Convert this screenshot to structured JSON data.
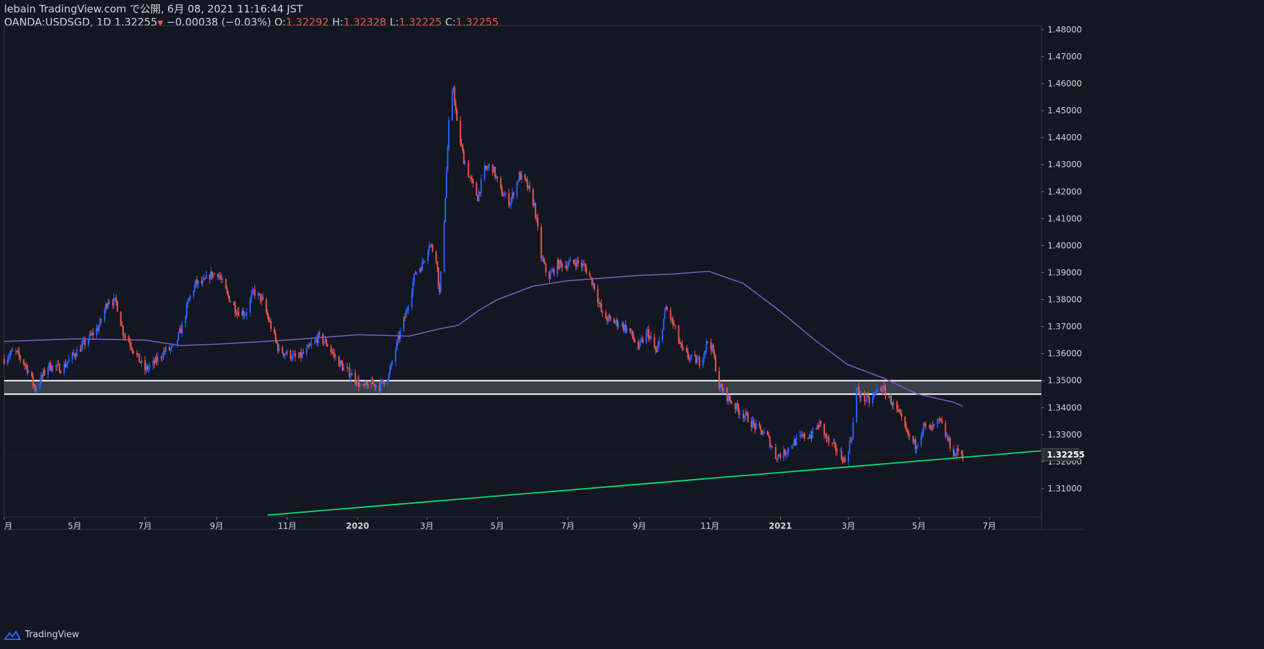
{
  "header": {
    "line1": "lebain TradingView.com で公開, 6月 08, 2021 11:16:44 JST",
    "symbol": "OANDA:USDSGD, 1D",
    "last": "1.32255",
    "change": "−0.00038 (−0.03%)",
    "o_label": "O:",
    "o_value": "1.32292",
    "h_label": "H:",
    "h_value": "1.32328",
    "l_label": "L:",
    "l_value": "1.32225",
    "c_label": "C:",
    "c_value": "1.32255"
  },
  "footer": {
    "brand": "TradingView",
    "logo_icon": "tradingview-logo-icon"
  },
  "colors": {
    "background": "#131722",
    "up": "#2962ff",
    "down": "#ef5350",
    "ma": "#7e57c2",
    "trendline": "#00e676",
    "zone": "#ffffff"
  },
  "chart_data": {
    "type": "candlestick",
    "symbol": "OANDA:USDSGD",
    "interval": "1D",
    "ylim": [
      1.2995,
      1.4815
    ],
    "xlim": [
      "2019-03-01",
      "2021-08-15"
    ],
    "y_ticks": [
      "1.48000",
      "1.47000",
      "1.46000",
      "1.45000",
      "1.44000",
      "1.43000",
      "1.42000",
      "1.41000",
      "1.40000",
      "1.39000",
      "1.38000",
      "1.37000",
      "1.36000",
      "1.35000",
      "1.34000",
      "1.33000",
      "1.32000",
      "1.31000"
    ],
    "y_tick_values": [
      1.48,
      1.47,
      1.46,
      1.45,
      1.44,
      1.43,
      1.42,
      1.41,
      1.4,
      1.39,
      1.38,
      1.37,
      1.36,
      1.35,
      1.34,
      1.33,
      1.32,
      1.31
    ],
    "x_ticks": [
      {
        "label": "月",
        "date": "2019-03-01"
      },
      {
        "label": "5月",
        "date": "2019-05-01"
      },
      {
        "label": "7月",
        "date": "2019-07-01"
      },
      {
        "label": "9月",
        "date": "2019-09-01"
      },
      {
        "label": "11月",
        "date": "2019-11-01"
      },
      {
        "label": "2020",
        "date": "2020-01-01",
        "bold": true
      },
      {
        "label": "3月",
        "date": "2020-03-01"
      },
      {
        "label": "5月",
        "date": "2020-05-01"
      },
      {
        "label": "7月",
        "date": "2020-07-01"
      },
      {
        "label": "9月",
        "date": "2020-09-01"
      },
      {
        "label": "11月",
        "date": "2020-11-01"
      },
      {
        "label": "2021",
        "date": "2021-01-01",
        "bold": true
      },
      {
        "label": "3月",
        "date": "2021-03-01"
      },
      {
        "label": "5月",
        "date": "2021-05-01"
      },
      {
        "label": "7月",
        "date": "2021-07-01"
      }
    ],
    "last_price_label": "1.32255",
    "last_price": 1.32255,
    "price_path": [
      [
        "2019-03-01",
        1.358
      ],
      [
        "2019-03-10",
        1.361
      ],
      [
        "2019-03-20",
        1.3555
      ],
      [
        "2019-03-28",
        1.347
      ],
      [
        "2019-04-08",
        1.3555
      ],
      [
        "2019-04-20",
        1.3545
      ],
      [
        "2019-05-01",
        1.36
      ],
      [
        "2019-05-10",
        1.364
      ],
      [
        "2019-05-22",
        1.37
      ],
      [
        "2019-05-30",
        1.38
      ],
      [
        "2019-06-06",
        1.379
      ],
      [
        "2019-06-12",
        1.368
      ],
      [
        "2019-06-18",
        1.364
      ],
      [
        "2019-06-24",
        1.359
      ],
      [
        "2019-07-01",
        1.354
      ],
      [
        "2019-07-08",
        1.356
      ],
      [
        "2019-07-18",
        1.361
      ],
      [
        "2019-07-26",
        1.362
      ],
      [
        "2019-08-02",
        1.37
      ],
      [
        "2019-08-08",
        1.38
      ],
      [
        "2019-08-14",
        1.386
      ],
      [
        "2019-08-20",
        1.386
      ],
      [
        "2019-08-26",
        1.389
      ],
      [
        "2019-09-02",
        1.39
      ],
      [
        "2019-09-10",
        1.382
      ],
      [
        "2019-09-18",
        1.376
      ],
      [
        "2019-09-26",
        1.375
      ],
      [
        "2019-10-03",
        1.383
      ],
      [
        "2019-10-10",
        1.38
      ],
      [
        "2019-10-18",
        1.37
      ],
      [
        "2019-10-25",
        1.361
      ],
      [
        "2019-11-01",
        1.36
      ],
      [
        "2019-11-10",
        1.358
      ],
      [
        "2019-11-20",
        1.362
      ],
      [
        "2019-11-28",
        1.366
      ],
      [
        "2019-12-05",
        1.364
      ],
      [
        "2019-12-12",
        1.359
      ],
      [
        "2019-12-20",
        1.3545
      ],
      [
        "2019-12-28",
        1.352
      ],
      [
        "2020-01-05",
        1.347
      ],
      [
        "2020-01-12",
        1.349
      ],
      [
        "2020-01-20",
        1.348
      ],
      [
        "2020-01-28",
        1.352
      ],
      [
        "2020-02-05",
        1.365
      ],
      [
        "2020-02-12",
        1.375
      ],
      [
        "2020-02-20",
        1.39
      ],
      [
        "2020-02-26",
        1.393
      ],
      [
        "2020-03-03",
        1.401
      ],
      [
        "2020-03-09",
        1.396
      ],
      [
        "2020-03-12",
        1.382
      ],
      [
        "2020-03-16",
        1.41
      ],
      [
        "2020-03-20",
        1.445
      ],
      [
        "2020-03-24",
        1.459
      ],
      [
        "2020-03-27",
        1.445
      ],
      [
        "2020-04-02",
        1.432
      ],
      [
        "2020-04-08",
        1.424
      ],
      [
        "2020-04-14",
        1.418
      ],
      [
        "2020-04-20",
        1.428
      ],
      [
        "2020-04-26",
        1.43
      ],
      [
        "2020-05-04",
        1.42
      ],
      [
        "2020-05-12",
        1.416
      ],
      [
        "2020-05-20",
        1.426
      ],
      [
        "2020-05-26",
        1.423
      ],
      [
        "2020-06-02",
        1.415
      ],
      [
        "2020-06-08",
        1.396
      ],
      [
        "2020-06-14",
        1.388
      ],
      [
        "2020-06-22",
        1.393
      ],
      [
        "2020-06-30",
        1.393
      ],
      [
        "2020-07-08",
        1.394
      ],
      [
        "2020-07-16",
        1.392
      ],
      [
        "2020-07-24",
        1.385
      ],
      [
        "2020-07-31",
        1.374
      ],
      [
        "2020-08-08",
        1.372
      ],
      [
        "2020-08-16",
        1.371
      ],
      [
        "2020-08-24",
        1.368
      ],
      [
        "2020-08-31",
        1.362
      ],
      [
        "2020-09-08",
        1.368
      ],
      [
        "2020-09-16",
        1.36
      ],
      [
        "2020-09-24",
        1.377
      ],
      [
        "2020-10-01",
        1.37
      ],
      [
        "2020-10-08",
        1.361
      ],
      [
        "2020-10-16",
        1.358
      ],
      [
        "2020-10-24",
        1.357
      ],
      [
        "2020-10-31",
        1.366
      ],
      [
        "2020-11-04",
        1.36
      ],
      [
        "2020-11-09",
        1.348
      ],
      [
        "2020-11-18",
        1.343
      ],
      [
        "2020-11-26",
        1.339
      ],
      [
        "2020-12-04",
        1.336
      ],
      [
        "2020-12-12",
        1.332
      ],
      [
        "2020-12-20",
        1.33
      ],
      [
        "2020-12-28",
        1.322
      ],
      [
        "2021-01-04",
        1.323
      ],
      [
        "2021-01-12",
        1.327
      ],
      [
        "2021-01-20",
        1.329
      ],
      [
        "2021-01-28",
        1.33
      ],
      [
        "2021-02-04",
        1.334
      ],
      [
        "2021-02-12",
        1.327
      ],
      [
        "2021-02-20",
        1.324
      ],
      [
        "2021-02-26",
        1.32
      ],
      [
        "2021-03-04",
        1.33
      ],
      [
        "2021-03-08",
        1.347
      ],
      [
        "2021-03-12",
        1.344
      ],
      [
        "2021-03-20",
        1.342
      ],
      [
        "2021-03-28",
        1.348
      ],
      [
        "2021-04-05",
        1.344
      ],
      [
        "2021-04-13",
        1.338
      ],
      [
        "2021-04-21",
        1.33
      ],
      [
        "2021-04-28",
        1.326
      ],
      [
        "2021-05-05",
        1.333
      ],
      [
        "2021-05-12",
        1.332
      ],
      [
        "2021-05-19",
        1.335
      ],
      [
        "2021-05-26",
        1.328
      ],
      [
        "2021-06-01",
        1.3225
      ],
      [
        "2021-06-04",
        1.324
      ],
      [
        "2021-06-08",
        1.32255
      ]
    ],
    "series": [
      {
        "name": "",
        "kind": "moving_average",
        "values": [
          [
            "2019-03-01",
            1.3645
          ],
          [
            "2019-05-01",
            1.3655
          ],
          [
            "2019-07-01",
            1.365
          ],
          [
            "2019-08-01",
            1.363
          ],
          [
            "2019-09-01",
            1.3635
          ],
          [
            "2019-11-01",
            1.365
          ],
          [
            "2020-01-01",
            1.367
          ],
          [
            "2020-02-15",
            1.3665
          ],
          [
            "2020-03-10",
            1.369
          ],
          [
            "2020-03-28",
            1.3705
          ],
          [
            "2020-04-15",
            1.376
          ],
          [
            "2020-05-01",
            1.38
          ],
          [
            "2020-06-01",
            1.385
          ],
          [
            "2020-07-01",
            1.387
          ],
          [
            "2020-08-01",
            1.388
          ],
          [
            "2020-09-01",
            1.389
          ],
          [
            "2020-10-01",
            1.3895
          ],
          [
            "2020-10-31",
            1.3905
          ],
          [
            "2020-11-30",
            1.386
          ],
          [
            "2020-12-31",
            1.376
          ],
          [
            "2021-01-31",
            1.365
          ],
          [
            "2021-02-28",
            1.356
          ],
          [
            "2021-03-31",
            1.351
          ],
          [
            "2021-04-30",
            1.345
          ],
          [
            "2021-05-31",
            1.342
          ],
          [
            "2021-06-08",
            1.3405
          ]
        ]
      },
      {
        "name": "",
        "kind": "trendline",
        "values": [
          [
            "2019-10-15",
            1.3002
          ],
          [
            "2021-08-15",
            1.324
          ]
        ]
      }
    ],
    "zone": {
      "low": 1.345,
      "high": 1.35
    },
    "grid": false,
    "legend": "top-left"
  }
}
